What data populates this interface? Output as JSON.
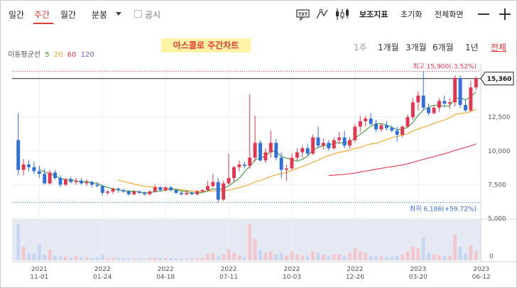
{
  "toolbar": {
    "tab_daily": "일간",
    "tab_weekly": "주간",
    "tab_monthly": "월간",
    "minute_select": "분봉",
    "disclosure_label": "공시",
    "txt_icon": "TXT",
    "indicator_label": "보조지표",
    "reset_label": "초기화",
    "fullscreen_label": "전체화면"
  },
  "chart_title": "아스콜로 주간차트",
  "ma_legend": {
    "label": "이동평균선",
    "items": [
      {
        "text": "5",
        "color": "#3a9e3a"
      },
      {
        "text": "20",
        "color": "#f5a623"
      },
      {
        "text": "60",
        "color": "#e8344e"
      },
      {
        "text": "120",
        "color": "#7b5cc9"
      }
    ]
  },
  "periods": [
    "1주",
    "1개월",
    "3개월",
    "6개월",
    "1년",
    "전체"
  ],
  "colors": {
    "up": "#e8344e",
    "down": "#2f6fe0",
    "active": "#e53935"
  },
  "chart_data": {
    "type": "candlestick",
    "ylim": [
      5000,
      16500
    ],
    "yticks": [
      {
        "value": 5000,
        "label": "5,000"
      },
      {
        "value": 7500,
        "label": "7,500"
      },
      {
        "value": 10000,
        "label": "10,000"
      },
      {
        "value": 12500,
        "label": "12,500"
      }
    ],
    "volume_tick_label": "0",
    "x_ticks": [
      {
        "i": 4,
        "year": "2021",
        "date": "11-01"
      },
      {
        "i": 16,
        "year": "2022",
        "date": "01-24"
      },
      {
        "i": 28,
        "year": "2022",
        "date": "04-18"
      },
      {
        "i": 40,
        "year": "2022",
        "date": "07-11"
      },
      {
        "i": 52,
        "year": "2022",
        "date": "10-03"
      },
      {
        "i": 64,
        "year": "2022",
        "date": "12-26"
      },
      {
        "i": 76,
        "year": "2023",
        "date": "03-20"
      },
      {
        "i": 88,
        "year": "2023",
        "date": "06-12"
      }
    ],
    "high_label": "최고 15,900(-3.52%)",
    "high_value": 15900,
    "low_label": "최저 6,186(+59.72%)",
    "low_value": 6186,
    "current_label": "15,360",
    "current_value": 15360,
    "candles": [
      [
        10800,
        12800,
        8200,
        8600
      ],
      [
        8600,
        9400,
        8200,
        9000
      ],
      [
        9000,
        9300,
        8500,
        8800
      ],
      [
        8800,
        9200,
        8300,
        8500
      ],
      [
        8500,
        8900,
        8000,
        8300
      ],
      [
        8300,
        8700,
        7500,
        7600
      ],
      [
        7600,
        8600,
        7500,
        8400
      ],
      [
        8400,
        8600,
        7900,
        8000
      ],
      [
        8000,
        8200,
        7300,
        7500
      ],
      [
        7500,
        8000,
        7400,
        7900
      ],
      [
        7900,
        8100,
        7600,
        7700
      ],
      [
        7700,
        8000,
        7500,
        7800
      ],
      [
        7800,
        8000,
        7500,
        7600
      ],
      [
        7600,
        7900,
        7400,
        7700
      ],
      [
        7700,
        7800,
        7300,
        7500
      ],
      [
        7500,
        7700,
        7300,
        7400
      ],
      [
        7400,
        7500,
        6700,
        6900
      ],
      [
        6900,
        7100,
        6700,
        7000
      ],
      [
        7000,
        7300,
        6800,
        7200
      ],
      [
        7200,
        7300,
        6900,
        7100
      ],
      [
        7100,
        7200,
        6900,
        7000
      ],
      [
        7000,
        7100,
        6700,
        6800
      ],
      [
        6800,
        7100,
        6700,
        7000
      ],
      [
        7000,
        7100,
        6800,
        6900
      ],
      [
        6900,
        7000,
        6700,
        6800
      ],
      [
        6800,
        7100,
        6700,
        7000
      ],
      [
        7000,
        7500,
        6900,
        7300
      ],
      [
        7300,
        7400,
        7000,
        7100
      ],
      [
        7100,
        7400,
        7000,
        7300
      ],
      [
        7300,
        7400,
        7000,
        7100
      ],
      [
        7100,
        7200,
        6800,
        6900
      ],
      [
        6900,
        7000,
        6700,
        6800
      ],
      [
        6800,
        7100,
        6700,
        6900
      ],
      [
        6900,
        7000,
        6700,
        6800
      ],
      [
        6800,
        7100,
        6700,
        7000
      ],
      [
        7000,
        7200,
        6900,
        7100
      ],
      [
        7100,
        7800,
        7000,
        7400
      ],
      [
        7400,
        8300,
        7300,
        7700
      ],
      [
        7700,
        8000,
        6200,
        6400
      ],
      [
        6400,
        7800,
        6300,
        7600
      ],
      [
        7600,
        9800,
        7500,
        8000
      ],
      [
        8000,
        8900,
        7700,
        8800
      ],
      [
        8800,
        9300,
        8500,
        9000
      ],
      [
        9000,
        9200,
        8700,
        8900
      ],
      [
        8900,
        14200,
        8700,
        9500
      ],
      [
        9500,
        12600,
        9200,
        10600
      ],
      [
        10600,
        10800,
        9200,
        9300
      ],
      [
        9300,
        10200,
        9100,
        9900
      ],
      [
        9900,
        11500,
        9500,
        10600
      ],
      [
        10600,
        10900,
        9300,
        9500
      ],
      [
        9500,
        9900,
        8000,
        8600
      ],
      [
        8600,
        9000,
        7800,
        8700
      ],
      [
        8700,
        9800,
        8600,
        9500
      ],
      [
        9500,
        10200,
        9300,
        9900
      ],
      [
        9900,
        10400,
        9500,
        10200
      ],
      [
        10200,
        10500,
        9600,
        9800
      ],
      [
        9800,
        11200,
        9700,
        11000
      ],
      [
        11000,
        11800,
        10200,
        10400
      ],
      [
        10400,
        10900,
        10100,
        10600
      ],
      [
        10600,
        10800,
        10000,
        10200
      ],
      [
        10200,
        11000,
        10100,
        10800
      ],
      [
        10800,
        11400,
        10500,
        11000
      ],
      [
        11000,
        11500,
        10200,
        10400
      ],
      [
        10400,
        11000,
        10200,
        10800
      ],
      [
        10800,
        12000,
        10600,
        11800
      ],
      [
        11800,
        12600,
        11400,
        12200
      ],
      [
        12200,
        12600,
        11800,
        12400
      ],
      [
        12400,
        12800,
        11900,
        12000
      ],
      [
        12000,
        12300,
        11400,
        11600
      ],
      [
        11600,
        12000,
        11400,
        11900
      ],
      [
        11900,
        12200,
        11500,
        11700
      ],
      [
        11700,
        11900,
        11400,
        11500
      ],
      [
        11500,
        11800,
        10700,
        11200
      ],
      [
        11200,
        11900,
        11000,
        11800
      ],
      [
        11800,
        12700,
        11700,
        12500
      ],
      [
        12500,
        13900,
        12300,
        13600
      ],
      [
        13600,
        14400,
        13000,
        14100
      ],
      [
        14100,
        15900,
        13000,
        13200
      ],
      [
        13200,
        13500,
        12600,
        12800
      ],
      [
        12800,
        13400,
        12700,
        13200
      ],
      [
        13200,
        13900,
        12900,
        13700
      ],
      [
        13700,
        14100,
        13300,
        13500
      ],
      [
        13500,
        13900,
        13100,
        13600
      ],
      [
        13600,
        15600,
        13300,
        15400
      ],
      [
        15400,
        15600,
        13200,
        13400
      ],
      [
        13400,
        13800,
        12900,
        13000
      ],
      [
        13000,
        15200,
        12900,
        14700
      ],
      [
        14700,
        15500,
        14500,
        15360
      ]
    ],
    "volumes": [
      48,
      18,
      10,
      9,
      22,
      8,
      14,
      6,
      5,
      5,
      4,
      6,
      4,
      4,
      3,
      4,
      8,
      3,
      3,
      3,
      3,
      3,
      2,
      2,
      2,
      3,
      4,
      3,
      3,
      3,
      2,
      2,
      2,
      3,
      3,
      3,
      8,
      10,
      6,
      8,
      15,
      10,
      6,
      4,
      48,
      28,
      14,
      10,
      12,
      8,
      10,
      6,
      12,
      8,
      6,
      5,
      12,
      10,
      8,
      6,
      8,
      8,
      6,
      10,
      16,
      12,
      10,
      6,
      5,
      5,
      4,
      5,
      6,
      8,
      12,
      18,
      16,
      30,
      10,
      8,
      7,
      6,
      6,
      34,
      18,
      9,
      20,
      12
    ]
  }
}
